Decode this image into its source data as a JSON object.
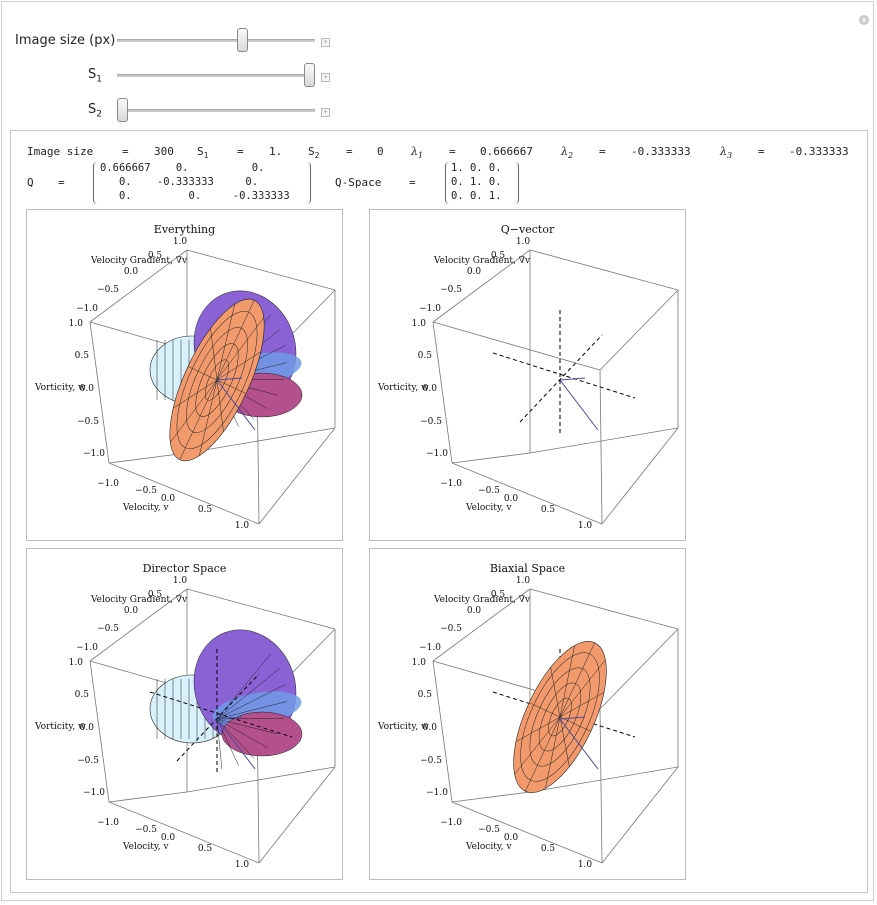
{
  "controls": {
    "image_size_label": "Image size (px)",
    "s1_label": "S",
    "s1_sub": "1",
    "s2_label": "S",
    "s2_sub": "2",
    "image_size_value": 0.64,
    "s1_value": 1.0,
    "s2_value": 0.0
  },
  "readout": {
    "image_size_key": "Image size",
    "image_size_val": "300",
    "s1_key": "S",
    "s1_sub": "1",
    "s1_val": "1.",
    "s2_key": "S",
    "s2_sub": "2",
    "s2_val": "0",
    "l1_key": "λ",
    "l1_sub": "1",
    "l1_val": "0.666667",
    "l2_key": "λ",
    "l2_sub": "2",
    "l2_val": "-0.333333",
    "l3_key": "λ",
    "l3_sub": "3",
    "l3_val": "-0.333333",
    "eq": "=",
    "q_key": "Q",
    "q_rows": [
      "0.666667    0.          0.",
      "   0.    -0.333333     0.",
      "   0.         0.     -0.333333"
    ],
    "qspace_key": "Q-Space",
    "qspace_rows": [
      "1. 0. 0.",
      "0. 1. 0.",
      "0. 0. 1."
    ]
  },
  "plots": [
    {
      "title": "Everything",
      "mode": "everything"
    },
    {
      "title": "Q−vector",
      "mode": "qvector"
    },
    {
      "title": "Director Space",
      "mode": "director"
    },
    {
      "title": "Biaxial Space",
      "mode": "biaxial"
    }
  ],
  "axes": {
    "gradient_label": "Velocity Gradient, ∇v",
    "vorticity_label": "Vorticity, w",
    "velocity_label": "Velocity, v",
    "top_ticks": [
      "1.0",
      "0.5",
      "0.0",
      "−0.5",
      "−1.0"
    ],
    "left_ticks": [
      "1.0",
      "0.5",
      "0.0",
      "−0.5",
      "−1.0"
    ],
    "bottom_ticks": [
      "−1.0",
      "−0.5",
      "0.0",
      "0.5",
      "1.0"
    ]
  },
  "colors": {
    "orange": "#f29a6c",
    "purple": "#8a62d6",
    "blue": "#6f9be6",
    "magenta": "#b4508c",
    "cyan": "#d7f0fb"
  }
}
